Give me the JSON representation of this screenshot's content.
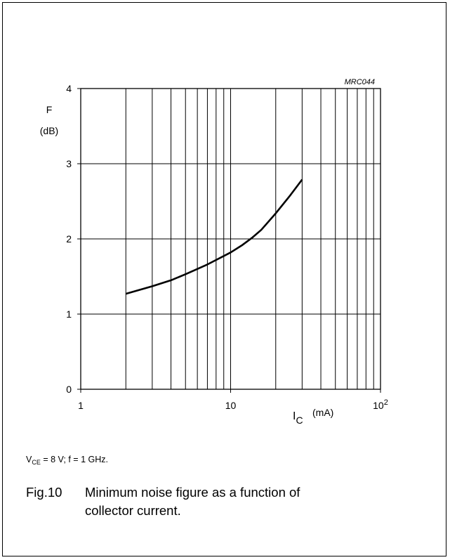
{
  "figure": {
    "code": "MRC044",
    "conditions": {
      "vce_label": "V",
      "vce_sub": "CE",
      "vce_rest": " = 8 V; f = 1 GHz."
    },
    "caption": {
      "number": "Fig.10",
      "line1": "Minimum noise figure as a function of",
      "line2": "collector current."
    }
  },
  "chart_data": {
    "type": "line",
    "x_scale": "log",
    "xlim": [
      1,
      100
    ],
    "ylim": [
      0,
      4
    ],
    "y_ticks": [
      "0",
      "1",
      "2",
      "3",
      "4"
    ],
    "x_ticks": [
      {
        "value": 1,
        "label": "1"
      },
      {
        "value": 10,
        "label": "10"
      },
      {
        "value": 100,
        "label": "10",
        "sup": "2"
      }
    ],
    "ylabel": "F",
    "yunit": "(dB)",
    "xlabel": "I",
    "xlabel_sub": "C",
    "xunit": "(mA)",
    "grid": true,
    "series": [
      {
        "x": [
          2,
          3,
          4,
          5,
          6,
          7,
          8,
          10,
          12,
          14,
          16,
          20,
          25,
          30
        ],
        "y": [
          1.27,
          1.37,
          1.45,
          1.53,
          1.6,
          1.66,
          1.72,
          1.82,
          1.92,
          2.02,
          2.12,
          2.34,
          2.58,
          2.79
        ]
      }
    ]
  }
}
